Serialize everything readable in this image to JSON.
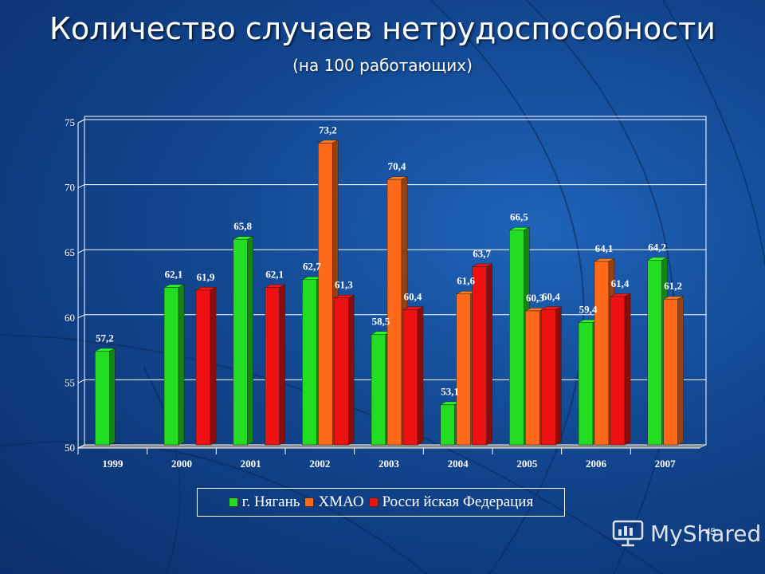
{
  "slide": {
    "title": "Количество случаев нетрудоспособности",
    "subtitle": "(на 100 работающих)",
    "page_number": "45",
    "watermark": "MyShared"
  },
  "chart_data": {
    "type": "bar",
    "title": "",
    "xlabel": "",
    "ylabel": "",
    "ylim": [
      50,
      75
    ],
    "yticks": [
      50,
      55,
      60,
      65,
      70,
      75
    ],
    "grid": true,
    "legend_position": "bottom",
    "categories": [
      "1999",
      "2000",
      "2001",
      "2002",
      "2003",
      "2004",
      "2005",
      "2006",
      "2007"
    ],
    "series": [
      {
        "name": "г. Нягань",
        "color": "#22dd22",
        "values": [
          57.2,
          62.1,
          65.8,
          62.7,
          58.5,
          53.1,
          66.5,
          59.4,
          64.2
        ],
        "labels": [
          "57,2",
          "62,1",
          "65,8",
          "62,7",
          "58,5",
          "53,1",
          "66,5",
          "59,4",
          "64,2"
        ]
      },
      {
        "name": "ХМАО",
        "color": "#ff6a1a",
        "values": [
          null,
          null,
          null,
          73.2,
          70.4,
          61.6,
          60.3,
          64.1,
          61.2
        ],
        "labels": [
          "",
          "",
          "",
          "73,2",
          "70,4",
          "61,6",
          "60,3",
          "64,1",
          "61,2"
        ]
      },
      {
        "name": "Росси йская Федерация",
        "color": "#ee1111",
        "values": [
          null,
          61.9,
          62.1,
          61.3,
          60.4,
          63.7,
          60.4,
          61.4,
          null
        ],
        "labels": [
          "",
          "61,9",
          "62,1",
          "61,3",
          "60,4",
          "63,7",
          "60,4",
          "61,4",
          ""
        ]
      }
    ]
  }
}
